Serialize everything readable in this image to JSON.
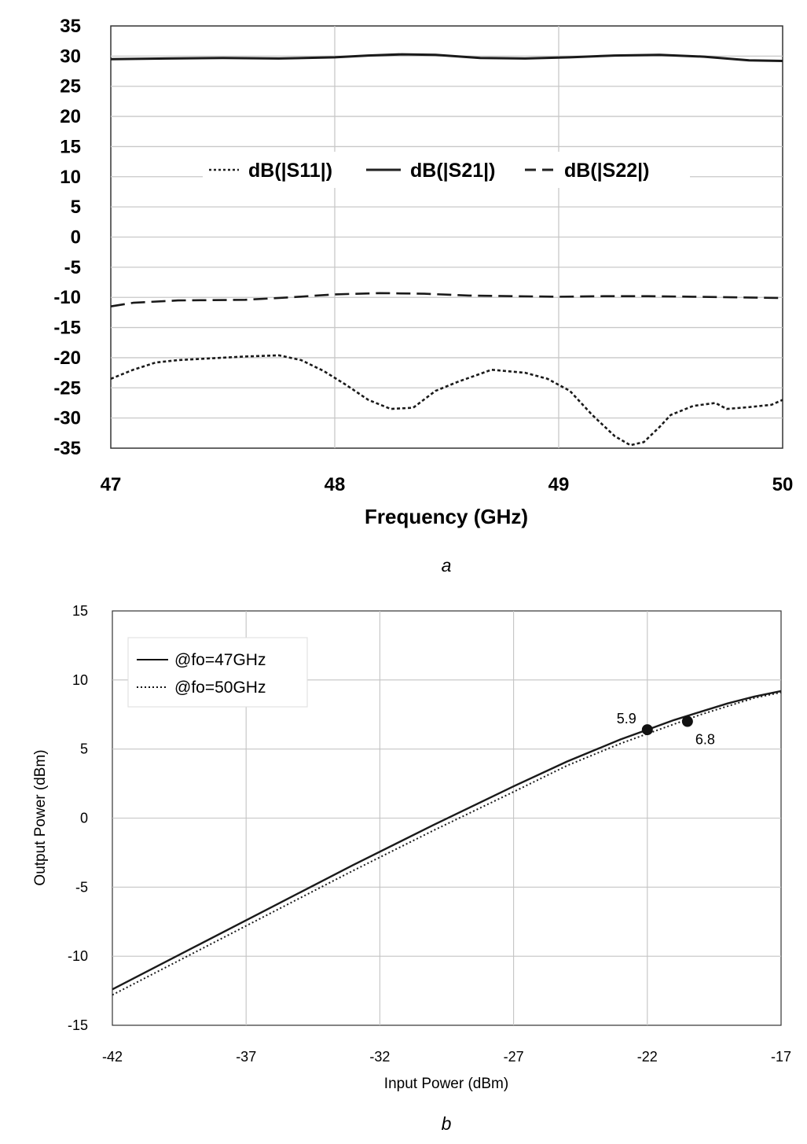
{
  "charts": [
    {
      "id": "a",
      "caption": "a",
      "chart_data": {
        "type": "line",
        "xlabel": "Frequency (GHz)",
        "ylabel": "",
        "xlim": [
          47,
          50
        ],
        "ylim": [
          -35,
          35
        ],
        "xticks": [
          "47",
          "48",
          "49",
          "50"
        ],
        "yticks": [
          "35",
          "30",
          "25",
          "20",
          "15",
          "10",
          "5",
          "0",
          "-5",
          "-10",
          "-15",
          "-20",
          "-25",
          "-30",
          "-35"
        ],
        "grid": true,
        "legend_position": "center",
        "series": [
          {
            "name": "dB(|S11|)",
            "style": "dotted",
            "x": [
              47.0,
              47.1,
              47.2,
              47.3,
              47.45,
              47.6,
              47.75,
              47.85,
              47.95,
              48.05,
              48.15,
              48.25,
              48.35,
              48.45,
              48.55,
              48.7,
              48.85,
              48.95,
              49.05,
              49.15,
              49.25,
              49.32,
              49.38,
              49.45,
              49.5,
              49.6,
              49.7,
              49.75,
              49.85,
              49.95,
              50.0
            ],
            "y": [
              -23.5,
              -22.0,
              -20.8,
              -20.4,
              -20.1,
              -19.8,
              -19.6,
              -20.4,
              -22.2,
              -24.5,
              -27.0,
              -28.5,
              -28.3,
              -25.5,
              -24.0,
              -22.0,
              -22.5,
              -23.5,
              -25.5,
              -29.5,
              -33.0,
              -34.5,
              -34.0,
              -31.5,
              -29.5,
              -28.0,
              -27.5,
              -28.5,
              -28.2,
              -27.8,
              -27.0
            ]
          },
          {
            "name": "dB(|S21|)",
            "style": "solid",
            "x": [
              47.0,
              47.25,
              47.5,
              47.75,
              48.0,
              48.15,
              48.3,
              48.45,
              48.65,
              48.85,
              49.05,
              49.25,
              49.45,
              49.65,
              49.85,
              50.0
            ],
            "y": [
              29.5,
              29.6,
              29.7,
              29.6,
              29.8,
              30.1,
              30.3,
              30.2,
              29.7,
              29.6,
              29.8,
              30.1,
              30.2,
              29.9,
              29.3,
              29.2
            ]
          },
          {
            "name": "dB(|S22|)",
            "style": "dashed",
            "x": [
              47.0,
              47.1,
              47.3,
              47.6,
              47.8,
              48.0,
              48.2,
              48.4,
              48.6,
              48.8,
              49.0,
              49.2,
              49.4,
              49.6,
              49.8,
              50.0
            ],
            "y": [
              -11.5,
              -10.9,
              -10.5,
              -10.4,
              -10.0,
              -9.5,
              -9.3,
              -9.4,
              -9.7,
              -9.8,
              -9.9,
              -9.8,
              -9.8,
              -9.9,
              -10.0,
              -10.1
            ]
          }
        ]
      }
    },
    {
      "id": "b",
      "caption": "b",
      "chart_data": {
        "type": "line",
        "xlabel": "Input Power (dBm)",
        "ylabel": "Output Power (dBm)",
        "xlim": [
          -42,
          -17
        ],
        "ylim": [
          -15,
          15
        ],
        "xticks": [
          "-42",
          "-37",
          "-32",
          "-27",
          "-22",
          "-17"
        ],
        "yticks": [
          "15",
          "10",
          "5",
          "0",
          "-5",
          "-10",
          "-15"
        ],
        "grid": true,
        "legend_position": "top-left",
        "series": [
          {
            "name": "@fo=47GHz",
            "style": "solid",
            "x": [
              -42,
              -39,
              -36,
              -33,
              -30,
              -27,
              -25,
              -23,
              -22,
              -21,
              -20,
              -19,
              -18,
              -17
            ],
            "y": [
              -12.4,
              -9.4,
              -6.4,
              -3.4,
              -0.5,
              2.3,
              4.1,
              5.7,
              6.4,
              7.1,
              7.7,
              8.3,
              8.8,
              9.2
            ]
          },
          {
            "name": "@fo=50GHz",
            "style": "dotted",
            "x": [
              -42,
              -39,
              -36,
              -33,
              -30,
              -27,
              -25,
              -23,
              -22,
              -21,
              -20,
              -19,
              -18,
              -17
            ],
            "y": [
              -12.8,
              -9.8,
              -6.8,
              -3.8,
              -0.9,
              1.9,
              3.8,
              5.4,
              6.1,
              6.8,
              7.5,
              8.1,
              8.7,
              9.1
            ]
          }
        ],
        "markers": [
          {
            "x": -22,
            "y": 6.4,
            "label": "5.9"
          },
          {
            "x": -20.5,
            "y": 7.0,
            "label": "6.8"
          }
        ]
      }
    }
  ]
}
